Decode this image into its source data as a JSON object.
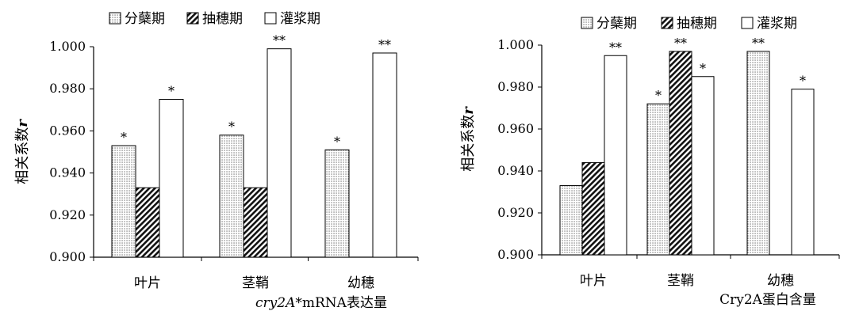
{
  "chart_data": [
    {
      "type": "bar",
      "categories": [
        "叶片",
        "茎鞘",
        "幼穗"
      ],
      "series": [
        {
          "name": "分蘖期",
          "values": [
            0.953,
            0.958,
            0.951
          ],
          "significance": [
            "*",
            "*",
            "*"
          ]
        },
        {
          "name": "抽穗期",
          "values": [
            0.933,
            0.933,
            null
          ],
          "significance": [
            "",
            "",
            ""
          ]
        },
        {
          "name": "灌浆期",
          "values": [
            0.975,
            0.999,
            0.997
          ],
          "significance": [
            "*",
            "**",
            "**"
          ]
        }
      ],
      "ylabel": "相关系数",
      "ylabel_italic": "r",
      "xtitle_italic": "cry2A",
      "xtitle_rest": "*mRNA表达量",
      "ylim": [
        0.9,
        1.0
      ],
      "yticks": [
        "0.900",
        "0.920",
        "0.940",
        "0.960",
        "0.980",
        "1.000"
      ],
      "legend_position": "top",
      "grid": false
    },
    {
      "type": "bar",
      "categories": [
        "叶片",
        "茎鞘",
        "幼穗"
      ],
      "series": [
        {
          "name": "分蘖期",
          "values": [
            0.933,
            0.972,
            0.997
          ],
          "significance": [
            "",
            "*",
            "**"
          ]
        },
        {
          "name": "抽穗期",
          "values": [
            0.944,
            0.997,
            null
          ],
          "significance": [
            "",
            "**",
            ""
          ]
        },
        {
          "name": "灌浆期",
          "values": [
            0.995,
            0.985,
            0.979
          ],
          "significance": [
            "**",
            "*",
            "*"
          ]
        }
      ],
      "ylabel": "相关系数",
      "ylabel_italic": "r",
      "xtitle": "Cry2A蛋白含量",
      "ylim": [
        0.9,
        1.0
      ],
      "yticks": [
        "0.900",
        "0.920",
        "0.940",
        "0.960",
        "0.980",
        "1.000"
      ],
      "legend_position": "top",
      "grid": false
    }
  ]
}
